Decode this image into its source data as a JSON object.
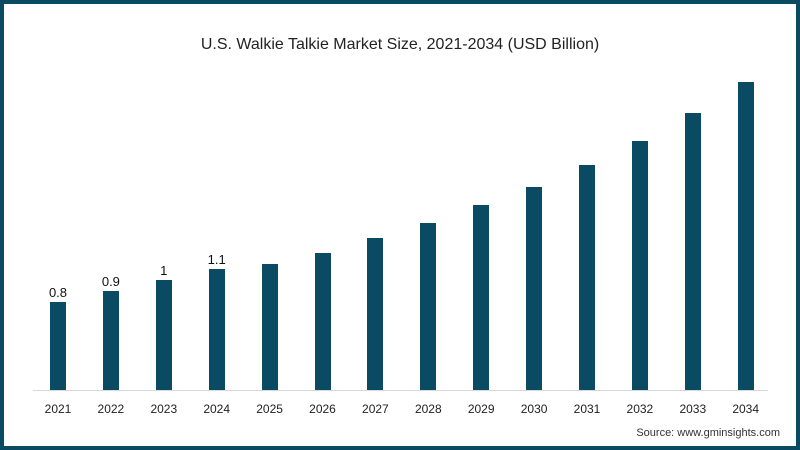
{
  "chart_data": {
    "type": "bar",
    "title": "U.S. Walkie Talkie Market Size, 2021-2034 (USD Billion)",
    "xlabel": "",
    "ylabel": "",
    "categories": [
      "2021",
      "2022",
      "2023",
      "2024",
      "2025",
      "2026",
      "2027",
      "2028",
      "2029",
      "2030",
      "2031",
      "2032",
      "2033",
      "2034"
    ],
    "values": [
      0.8,
      0.9,
      1.0,
      1.1,
      1.15,
      1.25,
      1.38,
      1.52,
      1.68,
      1.85,
      2.05,
      2.26,
      2.52,
      2.8
    ],
    "data_labels": [
      "0.8",
      "0.9",
      "1",
      "1.1",
      "",
      "",
      "",
      "",
      "",
      "",
      "",
      "",
      "",
      ""
    ],
    "ylim": [
      0,
      3
    ],
    "grid": false,
    "legend": "none",
    "bar_color": "#0b4a63"
  },
  "source": "Source: www.gminsights.com"
}
